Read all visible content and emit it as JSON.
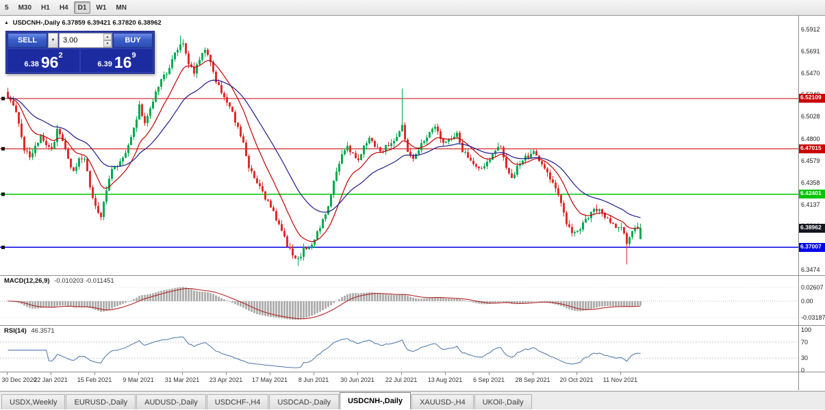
{
  "toolbar": {
    "timeframes": [
      "5",
      "M30",
      "H1",
      "H4",
      "D1",
      "W1",
      "MN"
    ],
    "active": "D1"
  },
  "icons": {
    "symbol_marker": "▲",
    "dropdown_arrow": "▼",
    "spin_up": "▲",
    "spin_down": "▼"
  },
  "chart_header": {
    "symbol": "USDCNH-,Daily",
    "ohlc": "6.37859 6.39421 6.37820 6.38962"
  },
  "trade_panel": {
    "sell_label": "SELL",
    "buy_label": "BUY",
    "volume": "3.00",
    "sell_price": {
      "prefix": "6.38",
      "pips": "96",
      "point": "2"
    },
    "buy_price": {
      "prefix": "6.39",
      "pips": "16",
      "point": "9"
    }
  },
  "indicators": {
    "macd": {
      "label": "MACD(12,26,9)",
      "values_text": "-0.010203 -0.011451",
      "axis_labels": [
        "0.02607",
        "0.00",
        "-0.03187"
      ],
      "axis_values": [
        0.02607,
        0,
        -0.03187
      ],
      "fast": 12,
      "slow": 26,
      "signal": 9
    },
    "rsi": {
      "label": "RSI(14)",
      "value_text": "46.3571",
      "axis_labels": [
        "100",
        "70",
        "30",
        "0"
      ],
      "axis_values": [
        100,
        70,
        30,
        0
      ],
      "levels": [
        70,
        30
      ],
      "period": 14
    }
  },
  "chart_data": {
    "type": "candlestick",
    "symbol": "USDCNH-",
    "timeframe": "Daily",
    "ohlc_current": {
      "open": 6.37859,
      "high": 6.39421,
      "low": 6.3782,
      "close": 6.38962
    },
    "ylim": [
      6.3419,
      6.6051
    ],
    "y_axis_labels": [
      "6.5912",
      "6.5691",
      "6.5470",
      "6.5249",
      "6.5028",
      "6.4800",
      "6.4579",
      "6.4358",
      "6.4137",
      "6.3916",
      "6.3695",
      "6.3474"
    ],
    "x_tick_labels": [
      "30 Dec 2020",
      "22 Jan 2021",
      "15 Feb 2021",
      "9 Mar 2021",
      "31 Mar 2021",
      "23 Apr 2021",
      "17 May 2021",
      "8 Jun 2021",
      "30 Jun 2021",
      "22 Jul 2021",
      "13 Aug 2021",
      "6 Sep 2021",
      "28 Sep 2021",
      "20 Oct 2021",
      "11 Nov 2021"
    ],
    "candle_count": 232,
    "candles_per_tick": 16,
    "price_waypoints": [
      [
        0,
        6.524
      ],
      [
        2,
        6.512
      ],
      [
        4,
        6.498
      ],
      [
        6,
        6.47
      ],
      [
        8,
        6.462
      ],
      [
        10,
        6.473
      ],
      [
        12,
        6.481
      ],
      [
        14,
        6.475
      ],
      [
        16,
        6.47
      ],
      [
        18,
        6.488
      ],
      [
        20,
        6.478
      ],
      [
        22,
        6.458
      ],
      [
        24,
        6.447
      ],
      [
        26,
        6.46
      ],
      [
        28,
        6.458
      ],
      [
        30,
        6.432
      ],
      [
        32,
        6.412
      ],
      [
        34,
        6.4
      ],
      [
        36,
        6.428
      ],
      [
        38,
        6.452
      ],
      [
        40,
        6.45
      ],
      [
        42,
        6.46
      ],
      [
        44,
        6.476
      ],
      [
        46,
        6.49
      ],
      [
        48,
        6.514
      ],
      [
        50,
        6.496
      ],
      [
        52,
        6.511
      ],
      [
        54,
        6.527
      ],
      [
        56,
        6.541
      ],
      [
        58,
        6.546
      ],
      [
        60,
        6.562
      ],
      [
        62,
        6.572
      ],
      [
        64,
        6.576
      ],
      [
        66,
        6.556
      ],
      [
        68,
        6.546
      ],
      [
        70,
        6.562
      ],
      [
        72,
        6.57
      ],
      [
        74,
        6.556
      ],
      [
        76,
        6.54
      ],
      [
        78,
        6.528
      ],
      [
        80,
        6.519
      ],
      [
        82,
        6.505
      ],
      [
        84,
        6.49
      ],
      [
        86,
        6.478
      ],
      [
        88,
        6.45
      ],
      [
        90,
        6.44
      ],
      [
        92,
        6.431
      ],
      [
        94,
        6.42
      ],
      [
        96,
        6.411
      ],
      [
        98,
        6.398
      ],
      [
        100,
        6.386
      ],
      [
        102,
        6.373
      ],
      [
        104,
        6.361
      ],
      [
        106,
        6.357
      ],
      [
        108,
        6.368
      ],
      [
        110,
        6.371
      ],
      [
        112,
        6.379
      ],
      [
        114,
        6.391
      ],
      [
        116,
        6.404
      ],
      [
        118,
        6.424
      ],
      [
        120,
        6.447
      ],
      [
        122,
        6.464
      ],
      [
        124,
        6.473
      ],
      [
        126,
        6.464
      ],
      [
        128,
        6.458
      ],
      [
        130,
        6.471
      ],
      [
        132,
        6.482
      ],
      [
        134,
        6.474
      ],
      [
        136,
        6.467
      ],
      [
        138,
        6.472
      ],
      [
        140,
        6.477
      ],
      [
        142,
        6.481
      ],
      [
        144,
        6.492
      ],
      [
        146,
        6.469
      ],
      [
        148,
        6.459
      ],
      [
        150,
        6.471
      ],
      [
        152,
        6.479
      ],
      [
        154,
        6.487
      ],
      [
        156,
        6.492
      ],
      [
        158,
        6.481
      ],
      [
        160,
        6.475
      ],
      [
        162,
        6.482
      ],
      [
        164,
        6.487
      ],
      [
        166,
        6.469
      ],
      [
        168,
        6.461
      ],
      [
        170,
        6.454
      ],
      [
        172,
        6.449
      ],
      [
        174,
        6.454
      ],
      [
        176,
        6.458
      ],
      [
        178,
        6.468
      ],
      [
        180,
        6.473
      ],
      [
        182,
        6.452
      ],
      [
        184,
        6.441
      ],
      [
        186,
        6.451
      ],
      [
        188,
        6.459
      ],
      [
        190,
        6.463
      ],
      [
        192,
        6.467
      ],
      [
        194,
        6.457
      ],
      [
        196,
        6.451
      ],
      [
        198,
        6.441
      ],
      [
        200,
        6.429
      ],
      [
        202,
        6.413
      ],
      [
        204,
        6.396
      ],
      [
        206,
        6.387
      ],
      [
        208,
        6.385
      ],
      [
        210,
        6.396
      ],
      [
        212,
        6.402
      ],
      [
        214,
        6.407
      ],
      [
        216,
        6.411
      ],
      [
        218,
        6.401
      ],
      [
        220,
        6.395
      ],
      [
        222,
        6.391
      ],
      [
        224,
        6.389
      ],
      [
        226,
        6.375
      ],
      [
        228,
        6.387
      ],
      [
        230,
        6.391
      ],
      [
        231,
        6.3896
      ]
    ],
    "wick_overrides": [
      {
        "i": 0,
        "high": 6.532
      },
      {
        "i": 63,
        "high": 6.585
      },
      {
        "i": 106,
        "low": 6.3512
      },
      {
        "i": 144,
        "high": 6.5312
      },
      {
        "i": 226,
        "low": 6.3528
      }
    ],
    "levels": [
      {
        "price": 6.52109,
        "label": "6.52109",
        "color": "#C80000"
      },
      {
        "price": 6.47015,
        "label": "6.47015",
        "color": "#C80000"
      },
      {
        "price": 6.42401,
        "label": "6.42401",
        "color": "#00C400"
      },
      {
        "price": 6.37007,
        "label": "6.37007",
        "color": "#0000E6"
      }
    ],
    "current_price": {
      "value": 6.38962,
      "label": "6.38962",
      "bg": "#15151E"
    },
    "moving_averages": [
      {
        "period": 12,
        "color": "#C00000"
      },
      {
        "period": 30,
        "color": "#1A1A8C"
      }
    ],
    "style": {
      "bull": "#00A94F",
      "bear": "#DF2B2B",
      "macd_hist": "#B0B0B0",
      "macd_signal": "#B22222",
      "rsi_line": "#4572A7"
    }
  },
  "tabs": {
    "items": [
      "USDX,Weekly",
      "EURUSD-,Daily",
      "AUDUSD-,Daily",
      "USDCHF-,H4",
      "USDCAD-,Daily",
      "USDCNH-,Daily",
      "XAUUSD-,H4",
      "UKOil-,Daily"
    ],
    "active_index": 5
  }
}
